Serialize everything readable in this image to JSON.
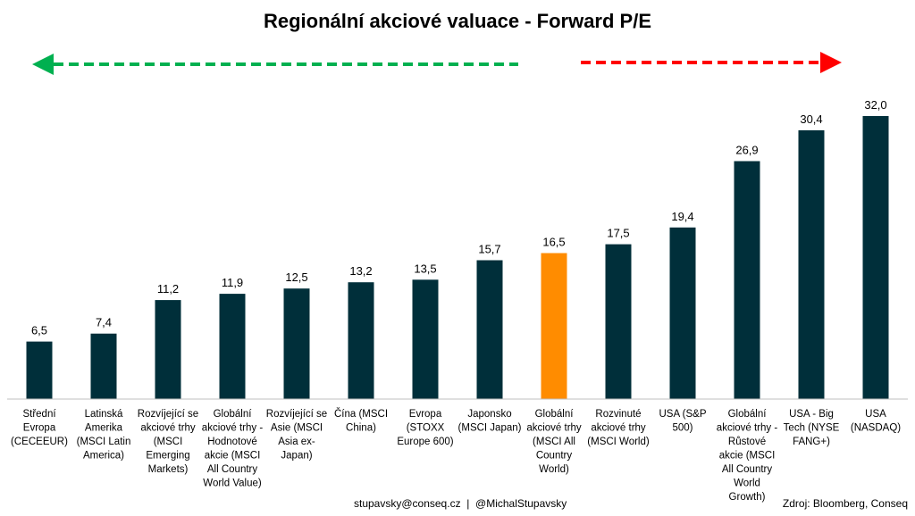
{
  "title": "Regionální akciové valuace - Forward P/E",
  "footer": {
    "contact": "stupavsky@conseq.cz  |  @MichalStupavsky",
    "source": "Zdroj: Bloomberg, Conseq"
  },
  "colors": {
    "bar": "#002F3A",
    "highlight": "#FF8C00",
    "arrow_left": "#00B050",
    "arrow_right": "#FF0000",
    "axis": "#BFBFBF"
  },
  "chart_data": {
    "type": "bar",
    "categories": [
      "Střední Evropa (CECEEUR)",
      "Latinská Amerika (MSCI Latin America)",
      "Rozvíjející se akciové trhy (MSCI Emerging Markets)",
      "Globální akciové trhy - Hodnotové akcie (MSCI All Country World Value)",
      "Rozvíjející se Asie (MSCI Asia ex-Japan)",
      "Čína (MSCI China)",
      "Evropa (STOXX Europe 600)",
      "Japonsko (MSCI Japan)",
      "Globální akciové trhy (MSCI All Country World)",
      "Rozvinuté akciové trhy (MSCI World)",
      "USA (S&P 500)",
      "Globální akciové trhy - Růstové akcie (MSCI All Country World Growth)",
      "USA - Big Tech (NYSE FANG+)",
      "USA (NASDAQ)"
    ],
    "category_lines": [
      [
        "Střední",
        "Evropa",
        "(CECEEUR)"
      ],
      [
        "Latinská",
        "Amerika",
        "(MSCI Latin",
        "America)"
      ],
      [
        "Rozvíjející se",
        "akciové trhy",
        "(MSCI",
        "Emerging",
        "Markets)"
      ],
      [
        "Globální",
        "akciové trhy -",
        "Hodnotové",
        "akcie (MSCI",
        "All Country",
        "World Value)"
      ],
      [
        "Rozvíjející se",
        "Asie (MSCI",
        "Asia ex-",
        "Japan)"
      ],
      [
        "Čína (MSCI",
        "China)"
      ],
      [
        "Evropa",
        "(STOXX",
        "Europe 600)"
      ],
      [
        "Japonsko",
        "(MSCI Japan)"
      ],
      [
        "Globální",
        "akciové trhy",
        "(MSCI All",
        "Country",
        "World)"
      ],
      [
        "Rozvinuté",
        "akciové trhy",
        "(MSCI World)"
      ],
      [
        "USA (S&P",
        "500)"
      ],
      [
        "Globální",
        "akciové trhy -",
        "Růstové",
        "akcie (MSCI",
        "All Country",
        "World",
        "Growth)"
      ],
      [
        "USA - Big",
        "Tech (NYSE",
        "FANG+)"
      ],
      [
        "USA",
        "(NASDAQ)"
      ]
    ],
    "values": [
      6.5,
      7.4,
      11.2,
      11.9,
      12.5,
      13.2,
      13.5,
      15.7,
      16.5,
      17.5,
      19.4,
      26.9,
      30.4,
      32.0
    ],
    "value_labels": [
      "6,5",
      "7,4",
      "11,2",
      "11,9",
      "12,5",
      "13,2",
      "13,5",
      "15,7",
      "16,5",
      "17,5",
      "19,4",
      "26,9",
      "30,4",
      "32,0"
    ],
    "highlight_index": 8,
    "ylim": [
      0,
      32
    ],
    "grid": false,
    "xlabel": "",
    "ylabel": ""
  }
}
